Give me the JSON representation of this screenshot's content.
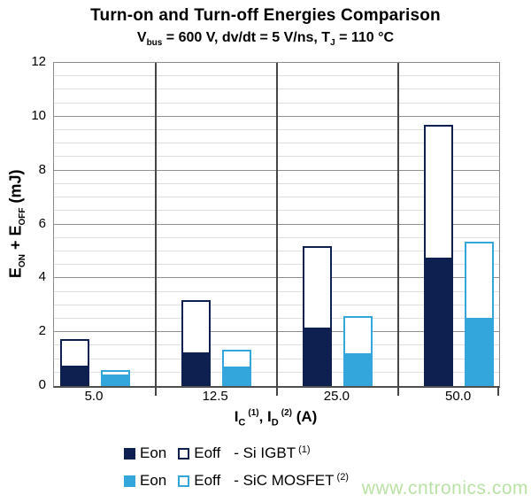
{
  "title": "Turn-on and Turn-off Energies Comparison",
  "subtitle": {
    "p1": "V",
    "sub1": "bus",
    "p2": " = 600 V, dv/dt = 5 V/ns, T",
    "sub2": "J",
    "p3": " = 110 °C"
  },
  "y_axis": {
    "p1": "E",
    "sub1": "ON",
    "p2": " + E",
    "sub2": "OFF",
    "p3": " (mJ)"
  },
  "x_axis": {
    "p1": "I",
    "sub1": "C",
    "sup1": "(1)",
    "p2": ", I",
    "sub2": "D",
    "sup2": "(2)",
    "p3": " (A)"
  },
  "legend": {
    "rows": [
      {
        "eon": "Eon",
        "eoff": "Eoff",
        "device": "- Si IGBT",
        "note": "(1)",
        "color_key": "igbt"
      },
      {
        "eon": "Eon",
        "eoff": "Eoff",
        "device": "- SiC MOSFET",
        "note": "(2)",
        "color_key": "sic"
      }
    ]
  },
  "watermark": "www.cntronics.com",
  "colors": {
    "igbt": "#0D2050",
    "sic": "#33A7DC",
    "grid_minor": "#DEDEDE",
    "grid_major": "#8F8F8F",
    "divider": "#454545",
    "plot_border": "#8A8A8A",
    "watermark": "#B9E2A5"
  },
  "chart_data": {
    "type": "bar",
    "stacked": true,
    "title": "Turn-on and Turn-off Energies Comparison",
    "subtitle": "Vbus = 600 V, dv/dt = 5 V/ns, TJ = 110 °C",
    "xlabel": "IC (1), ID (2) (A)",
    "ylabel": "EON + EOFF (mJ)",
    "categories": [
      "5.0",
      "12.5",
      "25.0",
      "50.0"
    ],
    "series": [
      {
        "name": "Eon - Si IGBT (1)",
        "stack": "si_igbt",
        "style": "filled",
        "color_key": "igbt",
        "values": [
          0.7,
          1.2,
          2.1,
          4.7
        ]
      },
      {
        "name": "Eoff - Si IGBT (1)",
        "stack": "si_igbt",
        "style": "outline",
        "color_key": "igbt",
        "values": [
          1.05,
          2.0,
          3.1,
          5.0
        ]
      },
      {
        "name": "Eon - SiC MOSFET (2)",
        "stack": "sic_mosfet",
        "style": "filled",
        "color_key": "sic",
        "values": [
          0.35,
          0.65,
          1.15,
          2.45
        ]
      },
      {
        "name": "Eoff - SiC MOSFET (2)",
        "stack": "sic_mosfet",
        "style": "outline",
        "color_key": "sic",
        "values": [
          0.25,
          0.7,
          1.45,
          2.9
        ]
      }
    ],
    "stack_totals": {
      "si_igbt": [
        1.75,
        3.2,
        5.2,
        9.7
      ],
      "sic_mosfet": [
        0.6,
        1.35,
        2.6,
        5.35
      ]
    },
    "ylim": [
      0,
      12
    ],
    "y_ticks": [
      0,
      2,
      4,
      6,
      8,
      10,
      12
    ],
    "minor_step": 0.5,
    "major_step": 2,
    "grid": true,
    "legend_position": "bottom"
  }
}
